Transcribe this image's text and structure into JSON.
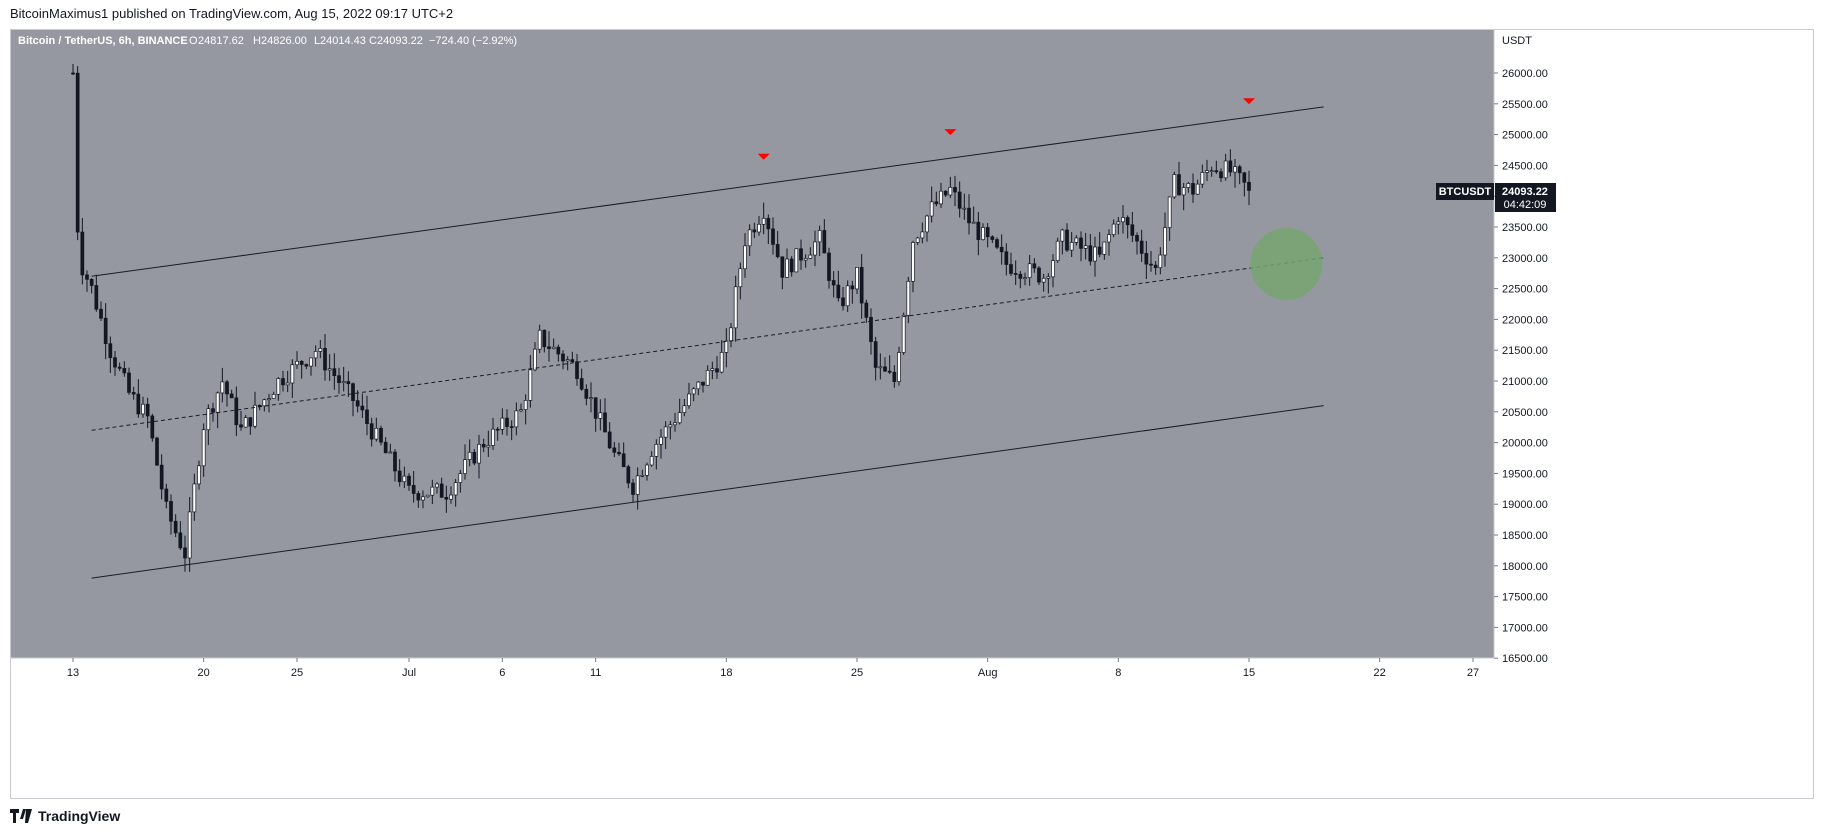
{
  "header": {
    "published_line": "BitcoinMaximus1 published on TradingView.com, Aug 15, 2022 09:17 UTC+2"
  },
  "legend": {
    "symbol": "Bitcoin / TetherUS, 6h, BINANCE",
    "o_label": "O",
    "o_value": "24817.62",
    "h_label": "H",
    "h_value": "24826.00",
    "l_label": "L",
    "l_value": "24014.43",
    "c_label": "C",
    "c_value": "24093.22",
    "change": "−724.40 (−2.92%)"
  },
  "price_axis": {
    "currency": "USDT",
    "ticks": [
      "26000.00",
      "25500.00",
      "25000.00",
      "24500.00",
      "24000.00",
      "23500.00",
      "23000.00",
      "22500.00",
      "22000.00",
      "21500.00",
      "21000.00",
      "20500.00",
      "20000.00",
      "19500.00",
      "19000.00",
      "18500.00",
      "18000.00",
      "17500.00",
      "17000.00",
      "16500.00"
    ]
  },
  "price_tag": {
    "symbol": "BTCUSDT",
    "price": "24093.22",
    "countdown": "04:42:09"
  },
  "time_axis": {
    "ticks": [
      "13",
      "20",
      "25",
      "Jul",
      "6",
      "11",
      "18",
      "25",
      "Aug",
      "8",
      "15",
      "22",
      "27"
    ]
  },
  "footer": {
    "brand": "TradingView"
  },
  "colors": {
    "plot_bg": "#9598a1",
    "candle": "#131722",
    "channel": "#1c1c22",
    "marker": "#ff0000",
    "target": "#77a570",
    "tag_bg": "#131722"
  },
  "chart_data": {
    "type": "candlestick",
    "symbol": "Bitcoin / TetherUS",
    "interval": "6h",
    "exchange": "BINANCE",
    "ylim": [
      16500,
      26500
    ],
    "x_range_days": [
      "2022-06-13",
      "2022-08-27"
    ],
    "last_close": 24093.22,
    "anchors": [
      {
        "date": "2022-06-13",
        "price": 26000
      },
      {
        "date": "2022-06-13.3",
        "price": 23000
      },
      {
        "date": "2022-06-14",
        "price": 22500
      },
      {
        "date": "2022-06-15",
        "price": 21500
      },
      {
        "date": "2022-06-16",
        "price": 20800
      },
      {
        "date": "2022-06-17",
        "price": 20400
      },
      {
        "date": "2022-06-18",
        "price": 18900
      },
      {
        "date": "2022-06-19",
        "price": 18200
      },
      {
        "date": "2022-06-20",
        "price": 20300
      },
      {
        "date": "2022-06-21",
        "price": 21000
      },
      {
        "date": "2022-06-22",
        "price": 20200
      },
      {
        "date": "2022-06-24",
        "price": 21000
      },
      {
        "date": "2022-06-26",
        "price": 21500
      },
      {
        "date": "2022-06-28",
        "price": 20700
      },
      {
        "date": "2022-06-30",
        "price": 19700
      },
      {
        "date": "2022-07-01",
        "price": 19200
      },
      {
        "date": "2022-07-03",
        "price": 19200
      },
      {
        "date": "2022-07-05",
        "price": 20000
      },
      {
        "date": "2022-07-07",
        "price": 20500
      },
      {
        "date": "2022-07-08",
        "price": 21700
      },
      {
        "date": "2022-07-10",
        "price": 21200
      },
      {
        "date": "2022-07-12",
        "price": 19800
      },
      {
        "date": "2022-07-13",
        "price": 19300
      },
      {
        "date": "2022-07-14",
        "price": 19900
      },
      {
        "date": "2022-07-16",
        "price": 20700
      },
      {
        "date": "2022-07-18",
        "price": 21500
      },
      {
        "date": "2022-07-19",
        "price": 23300
      },
      {
        "date": "2022-07-20",
        "price": 23800
      },
      {
        "date": "2022-07-21",
        "price": 22800
      },
      {
        "date": "2022-07-23",
        "price": 23300
      },
      {
        "date": "2022-07-24",
        "price": 22200
      },
      {
        "date": "2022-07-25",
        "price": 22700
      },
      {
        "date": "2022-07-26",
        "price": 21200
      },
      {
        "date": "2022-07-27",
        "price": 21000
      },
      {
        "date": "2022-07-28",
        "price": 23300
      },
      {
        "date": "2022-07-29",
        "price": 23800
      },
      {
        "date": "2022-07-30",
        "price": 24100
      },
      {
        "date": "2022-07-31",
        "price": 23600
      },
      {
        "date": "2022-08-02",
        "price": 22900
      },
      {
        "date": "2022-08-04",
        "price": 22700
      },
      {
        "date": "2022-08-05",
        "price": 23300
      },
      {
        "date": "2022-08-07",
        "price": 23000
      },
      {
        "date": "2022-08-08",
        "price": 23700
      },
      {
        "date": "2022-08-10",
        "price": 22800
      },
      {
        "date": "2022-08-11",
        "price": 24200
      },
      {
        "date": "2022-08-12",
        "price": 24100
      },
      {
        "date": "2022-08-13",
        "price": 24500
      },
      {
        "date": "2022-08-14",
        "price": 24400
      },
      {
        "date": "2022-08-15",
        "price": 24093
      }
    ],
    "channel": {
      "upper": [
        {
          "date": "2022-06-14",
          "price": 22700
        },
        {
          "date": "2022-08-19",
          "price": 25450
        }
      ],
      "middle": [
        {
          "date": "2022-06-14",
          "price": 20200
        },
        {
          "date": "2022-08-19",
          "price": 23000
        }
      ],
      "lower": [
        {
          "date": "2022-06-14",
          "price": 17800
        },
        {
          "date": "2022-08-19",
          "price": 20600
        }
      ]
    },
    "resistance_touches": [
      {
        "date": "2022-07-20",
        "price": 24300
      },
      {
        "date": "2022-07-30",
        "price": 24700
      },
      {
        "date": "2022-08-15",
        "price": 25200
      }
    ],
    "target_zone": {
      "date": "2022-08-17",
      "price": 22900
    }
  }
}
